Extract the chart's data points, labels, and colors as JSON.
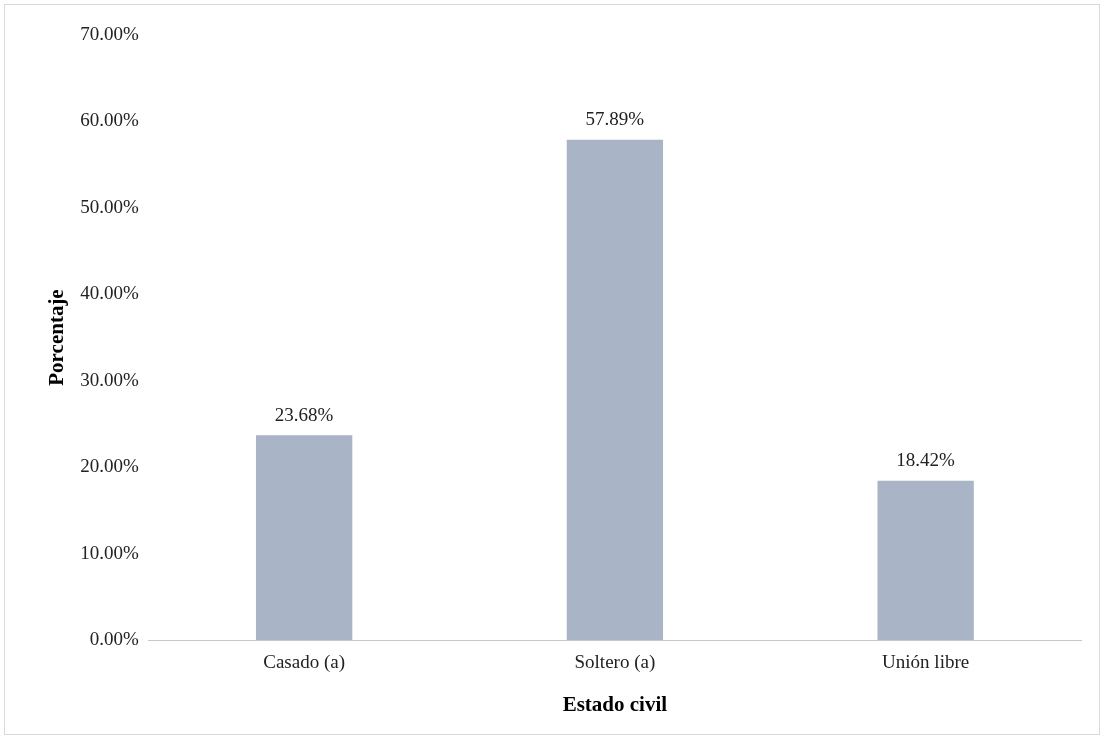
{
  "chart_data": {
    "type": "bar",
    "xlabel": "Estado civil",
    "ylabel": "Porcentaje",
    "categories": [
      "Casado (a)",
      "Soltero (a)",
      "Unión libre"
    ],
    "values": [
      23.68,
      57.89,
      18.42
    ],
    "color": "#a9b5c7",
    "value_labels": [
      "23.68%",
      "57.89%",
      "18.42%"
    ],
    "ylim": [
      0,
      70
    ],
    "yticks": [
      {
        "value": 0,
        "label": "0.00%"
      },
      {
        "value": 10,
        "label": "10.00%"
      },
      {
        "value": 20,
        "label": "20.00%"
      },
      {
        "value": 30,
        "label": "30.00%"
      },
      {
        "value": 40,
        "label": "40.00%"
      },
      {
        "value": 50,
        "label": "50.00%"
      },
      {
        "value": 60,
        "label": "60.00%"
      },
      {
        "value": 70,
        "label": "70.00%"
      }
    ],
    "grid": false,
    "legend": false
  }
}
